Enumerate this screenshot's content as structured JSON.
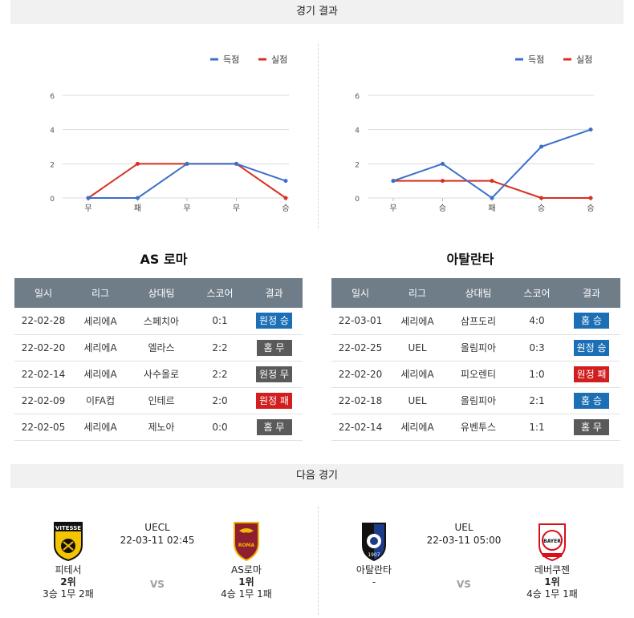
{
  "sections": {
    "results_title": "경기 결과",
    "next_title": "다음 경기"
  },
  "legend": {
    "scored": "득점",
    "conceded": "실점"
  },
  "colors": {
    "scored": "#3a6fcb",
    "conceded": "#d7301f",
    "home": "#1c6fb5",
    "away": "#1c6fb5",
    "loss": "#d21e1e",
    "draw": "#5a5a5a"
  },
  "chart_data": [
    {
      "type": "line",
      "categories": [
        "무",
        "패",
        "무",
        "무",
        "승"
      ],
      "series": [
        {
          "name": "득점",
          "values": [
            0,
            0,
            2,
            2,
            1
          ]
        },
        {
          "name": "실점",
          "values": [
            0,
            2,
            2,
            2,
            0
          ]
        }
      ],
      "yticks": [
        0,
        2,
        4,
        6
      ],
      "ylim": [
        0,
        6
      ],
      "legend": "top-right",
      "grid": true
    },
    {
      "type": "line",
      "categories": [
        "무",
        "승",
        "패",
        "승",
        "승"
      ],
      "series": [
        {
          "name": "득점",
          "values": [
            1,
            2,
            0,
            3,
            4
          ]
        },
        {
          "name": "실점",
          "values": [
            1,
            1,
            1,
            0,
            0
          ]
        }
      ],
      "yticks": [
        0,
        2,
        4,
        6
      ],
      "ylim": [
        0,
        6
      ],
      "legend": "top-right",
      "grid": true
    }
  ],
  "teams": [
    {
      "name": "AS 로마",
      "headers": [
        "일시",
        "리그",
        "상대팀",
        "스코어",
        "결과"
      ],
      "rows": [
        {
          "date": "22-02-28",
          "league": "세리에A",
          "opponent": "스페치아",
          "score": "0:1",
          "result": "원정 승",
          "kind": "away"
        },
        {
          "date": "22-02-20",
          "league": "세리에A",
          "opponent": "엘라스",
          "score": "2:2",
          "result": "홈 무",
          "kind": "draw"
        },
        {
          "date": "22-02-14",
          "league": "세리에A",
          "opponent": "사수올로",
          "score": "2:2",
          "result": "원정 무",
          "kind": "draw"
        },
        {
          "date": "22-02-09",
          "league": "이FA컵",
          "opponent": "인테르",
          "score": "2:0",
          "result": "원정 패",
          "kind": "loss"
        },
        {
          "date": "22-02-05",
          "league": "세리에A",
          "opponent": "제노아",
          "score": "0:0",
          "result": "홈 무",
          "kind": "draw"
        }
      ]
    },
    {
      "name": "아탈란타",
      "headers": [
        "일시",
        "리그",
        "상대팀",
        "스코어",
        "결과"
      ],
      "rows": [
        {
          "date": "22-03-01",
          "league": "세리에A",
          "opponent": "삼프도리",
          "score": "4:0",
          "result": "홈 승",
          "kind": "home"
        },
        {
          "date": "22-02-25",
          "league": "UEL",
          "opponent": "올림피아",
          "score": "0:3",
          "result": "원정 승",
          "kind": "away"
        },
        {
          "date": "22-02-20",
          "league": "세리에A",
          "opponent": "피오렌티",
          "score": "1:0",
          "result": "원정 패",
          "kind": "loss"
        },
        {
          "date": "22-02-18",
          "league": "UEL",
          "opponent": "올림피아",
          "score": "2:1",
          "result": "홈 승",
          "kind": "home"
        },
        {
          "date": "22-02-14",
          "league": "세리에A",
          "opponent": "유벤투스",
          "score": "1:1",
          "result": "홈 무",
          "kind": "draw"
        }
      ]
    }
  ],
  "next_matches": [
    {
      "league": "UECL",
      "datetime": "22-03-11 02:45",
      "vs": "VS",
      "home": {
        "name": "피테서",
        "rank": "2위",
        "record": "3승 1무 2패",
        "logo_text": "VITESSE"
      },
      "away": {
        "name": "AS로마",
        "rank": "1위",
        "record": "4승 1무 1패",
        "logo_text": "ROMA"
      }
    },
    {
      "league": "UEL",
      "datetime": "22-03-11 05:00",
      "vs": "VS",
      "home": {
        "name": "아탈란타",
        "rank": "-",
        "record": "",
        "logo_text": "1907"
      },
      "away": {
        "name": "레버쿠젠",
        "rank": "1위",
        "record": "4승 1무 1패",
        "logo_text": "BAYER"
      }
    }
  ]
}
